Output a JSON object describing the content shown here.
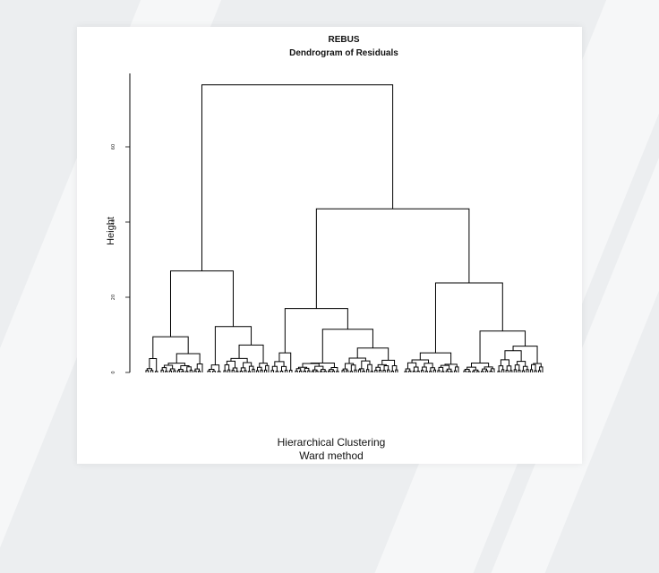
{
  "chart_data": {
    "type": "dendrogram",
    "title": "REBUS",
    "subtitle": "Dendrogram of Residuals",
    "xlabel_line1": "Hierarchical Clustering",
    "xlabel_line2": "Ward method",
    "ylabel": "Height",
    "ylim": [
      0,
      78
    ],
    "yticks": [
      "0",
      "20",
      "40",
      "60"
    ],
    "merges": [
      {
        "id": "root",
        "height": 76.5,
        "left": "A",
        "right": "B"
      },
      {
        "id": "A",
        "height": 27,
        "left": "A1",
        "right": "A2"
      },
      {
        "id": "A1",
        "height": 9.5,
        "left": "A1a",
        "right": "A1b"
      },
      {
        "id": "A1a",
        "height": 3.7
      },
      {
        "id": "A1b",
        "height": 5
      },
      {
        "id": "A2",
        "height": 12.2,
        "left": "A2a",
        "right": "A2b"
      },
      {
        "id": "A2a",
        "height": 2
      },
      {
        "id": "A2b",
        "height": 7.3
      },
      {
        "id": "B",
        "height": 43.5,
        "left": "B1",
        "right": "B2"
      },
      {
        "id": "B1",
        "height": 17,
        "left": "B1a",
        "right": "B1b"
      },
      {
        "id": "B1a",
        "height": 5.2
      },
      {
        "id": "B1b",
        "height": 11.5,
        "left": "B1b1",
        "right": "B1b2"
      },
      {
        "id": "B1b1",
        "height": 2.5
      },
      {
        "id": "B1b2",
        "height": 6.5
      },
      {
        "id": "B2",
        "height": 23.8,
        "left": "B2a",
        "right": "B2b"
      },
      {
        "id": "B2a",
        "height": 5.2
      },
      {
        "id": "B2b",
        "height": 11,
        "left": "B2b1",
        "right": "B2b2"
      },
      {
        "id": "B2b1",
        "height": 2.5
      },
      {
        "id": "B2b2",
        "height": 7
      }
    ],
    "grid": false
  }
}
